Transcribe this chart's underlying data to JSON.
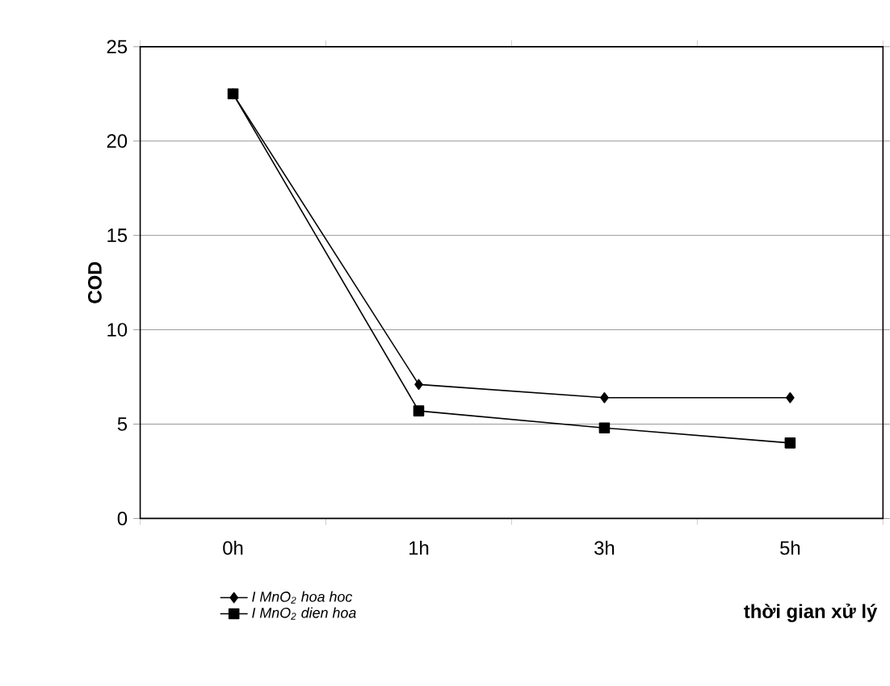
{
  "chart_data": {
    "type": "line",
    "categories": [
      "0h",
      "1h",
      "3h",
      "5h"
    ],
    "xlabel": "thời gian xử lý",
    "ylabel": "COD",
    "ylim": [
      0,
      25
    ],
    "yticks": [
      0,
      5,
      10,
      15,
      20,
      25
    ],
    "grid": "y",
    "legend": "bottom left",
    "series": [
      {
        "name": "I MnO$_{2}$ hoa hoc",
        "color": "#000000",
        "marker": "diamond",
        "values": [
          22.5,
          7.1,
          6.4,
          6.4
        ]
      },
      {
        "name": "I MnO$_{2}$ dien hoa",
        "color": "#000000",
        "marker": "square",
        "values": [
          22.5,
          5.7,
          4.8,
          4.0
        ]
      }
    ]
  }
}
